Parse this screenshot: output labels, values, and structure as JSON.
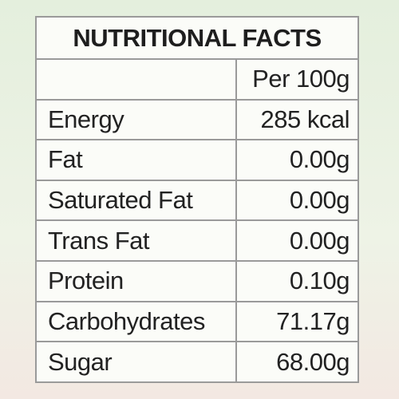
{
  "header": {
    "title": "NUTRITIONAL FACTS"
  },
  "table": {
    "column_header": "Per 100g",
    "rows": [
      [
        "Energy",
        "285 kcal"
      ],
      [
        "Fat",
        "0.00g"
      ],
      [
        "Saturated Fat",
        "0.00g"
      ],
      [
        "Trans Fat",
        "0.00g"
      ],
      [
        "Protein",
        "0.10g"
      ],
      [
        "Carbohydrates",
        "71.17g"
      ],
      [
        "Sugar",
        "68.00g"
      ]
    ]
  }
}
